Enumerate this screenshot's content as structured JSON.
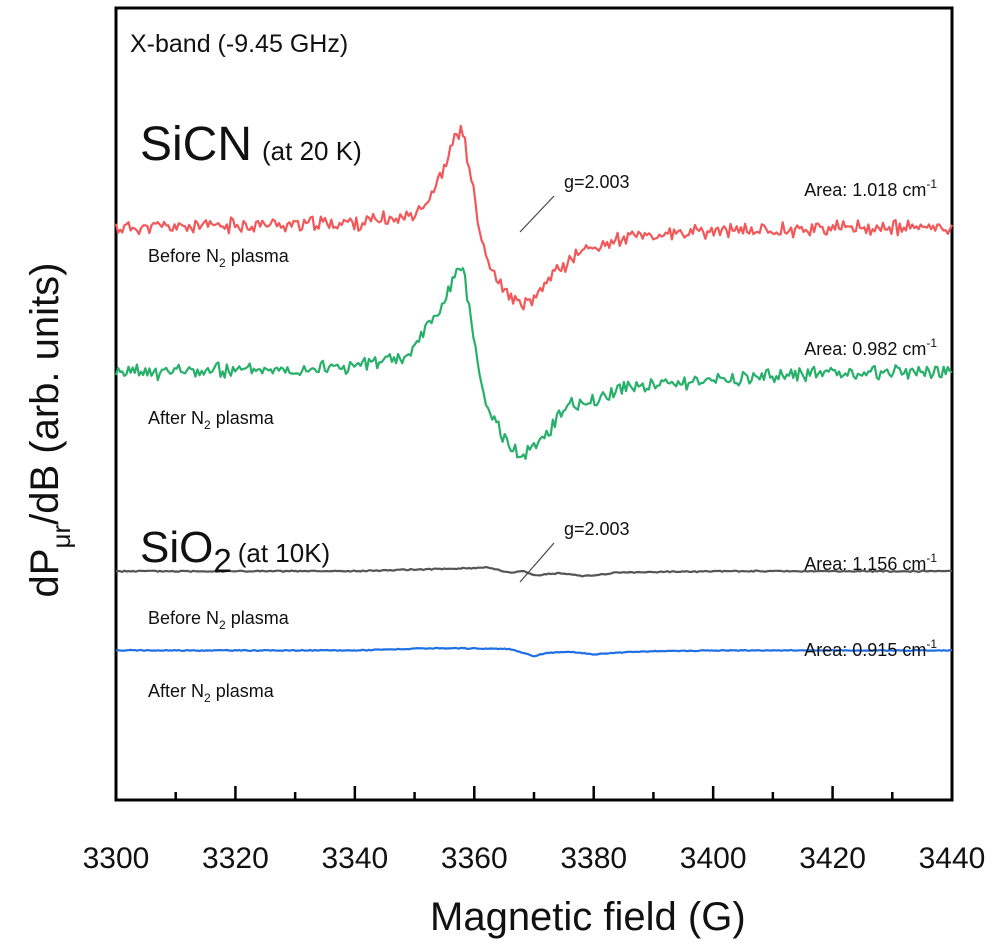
{
  "chart_data": {
    "type": "line",
    "title": "",
    "xlabel": "Magnetic field (G)",
    "ylabel": {
      "main": "dP",
      "sub": "μr",
      "rest": "/dB (arb. units)"
    },
    "xlim": [
      3300,
      3440
    ],
    "x_ticks": [
      3300,
      3320,
      3340,
      3360,
      3380,
      3400,
      3420,
      3440
    ],
    "y_ticks_shown": false,
    "band_label": "X-band (-9.45 GHz)",
    "groups": [
      {
        "name": "SiCN",
        "subscript": "",
        "condition": "(at 20 K)",
        "g_label": "g=2.003",
        "g_field": 3368
      },
      {
        "name": "SiO",
        "subscript": "2",
        "condition": "(at 10K)",
        "g_label": "g=2.003",
        "g_field": 3366
      }
    ],
    "series": [
      {
        "name": "SiCN before N2 plasma",
        "label_pre": "Before N",
        "label_sub": "2",
        "label_post": " plasma",
        "area_label": "Area: 1.018 cm",
        "area_exp": "-1",
        "color": "#f2585a",
        "baseline_offset": 0,
        "x": [
          3300,
          3340,
          3348,
          3352,
          3355,
          3357,
          3358,
          3359,
          3361,
          3363,
          3366,
          3368,
          3370,
          3373,
          3378,
          3385,
          3400,
          3420,
          3440
        ],
        "y": [
          0,
          0.8,
          1.5,
          3.8,
          9,
          14.5,
          15,
          10,
          -1,
          -7,
          -10.5,
          -12,
          -11,
          -7,
          -3.5,
          -1.5,
          -0.5,
          0,
          0
        ],
        "noise": 0.9,
        "seed": 11
      },
      {
        "name": "SiCN after N2 plasma",
        "label_pre": "After N",
        "label_sub": "2",
        "label_post": " plasma",
        "area_label": "Area: 0.982 cm",
        "area_exp": "-1",
        "color": "#27b06a",
        "baseline_offset": -22,
        "x": [
          3300,
          3340,
          3349,
          3352,
          3355,
          3357,
          3358,
          3359,
          3361,
          3363,
          3366,
          3368,
          3370,
          3373,
          3376,
          3378,
          3385,
          3400,
          3420,
          3440
        ],
        "y": [
          0,
          1,
          2.5,
          7,
          11,
          15.5,
          16,
          11,
          -1,
          -7,
          -11,
          -12.5,
          -11.5,
          -8,
          -4,
          -5,
          -2,
          -1,
          0,
          0.2
        ],
        "noise": 0.9,
        "seed": 23
      },
      {
        "name": "SiO2 before N2 plasma",
        "label_pre": "Before N",
        "label_sub": "2",
        "label_post": " plasma",
        "area_label": "Area: 1.156 cm",
        "area_exp": "-1",
        "color": "#555555",
        "baseline_offset": -52,
        "x": [
          3300,
          3340,
          3352,
          3358,
          3362,
          3364,
          3366,
          3368,
          3370,
          3374,
          3378,
          3380,
          3384,
          3400,
          3440
        ],
        "y": [
          0,
          0,
          0.3,
          0.4,
          0.6,
          0.2,
          -0.3,
          0.1,
          -0.6,
          -0.3,
          -0.7,
          -0.6,
          -0.2,
          0,
          0
        ],
        "noise": 0.08,
        "seed": 5
      },
      {
        "name": "SiO2 after N2 plasma",
        "label_pre": "After N",
        "label_sub": "2",
        "label_post": " plasma",
        "area_label": "Area: 0.915 cm",
        "area_exp": "-1",
        "color": "#1f6fe5",
        "baseline_offset": -64,
        "x": [
          3300,
          3340,
          3352,
          3360,
          3366,
          3368,
          3370,
          3372,
          3376,
          3380,
          3386,
          3400,
          3440
        ],
        "y": [
          0,
          0,
          0.3,
          0.3,
          0.2,
          -0.3,
          -0.9,
          -0.4,
          -0.2,
          -0.6,
          -0.2,
          0,
          0
        ],
        "noise": 0.06,
        "seed": 9
      }
    ]
  }
}
